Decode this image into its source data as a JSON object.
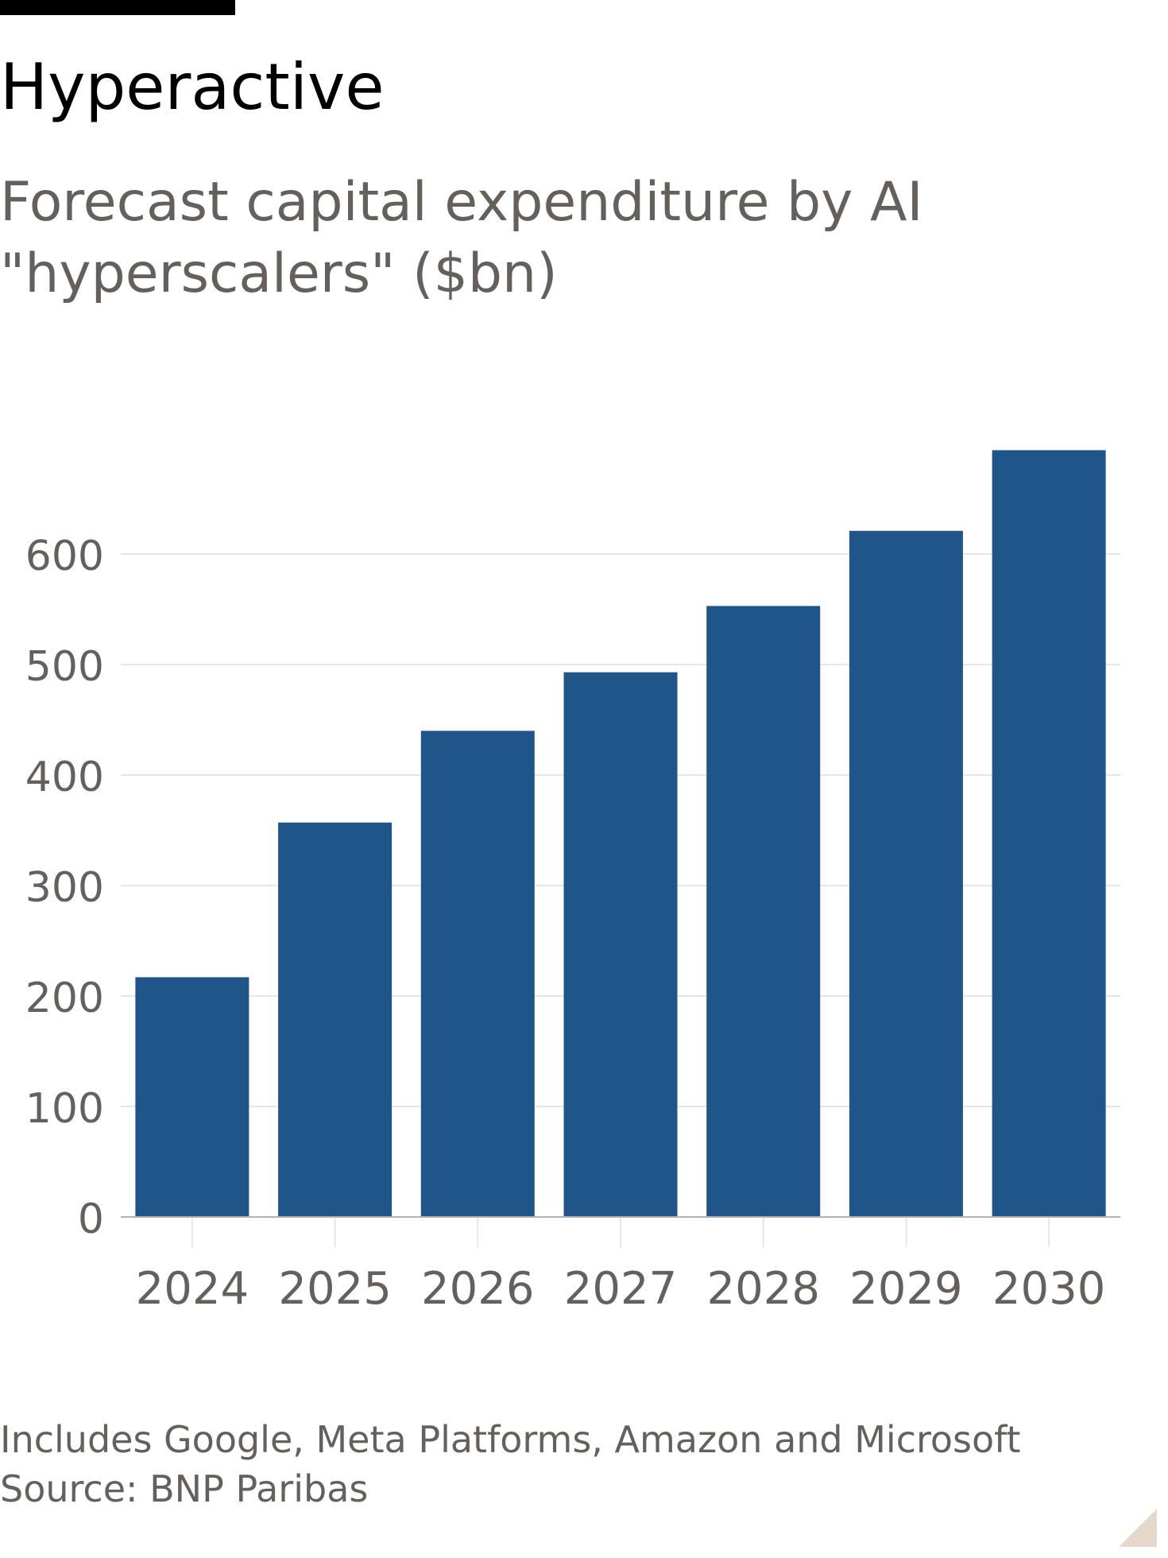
{
  "header": {
    "title": "Hyperactive",
    "subtitle": "Forecast capital expenditure by AI \"hyperscalers\" ($bn)"
  },
  "chart_data": {
    "type": "bar",
    "title": "Hyperactive",
    "subtitle": "Forecast capital expenditure by AI \"hyperscalers\" ($bn)",
    "categories": [
      "2024",
      "2025",
      "2026",
      "2027",
      "2028",
      "2029",
      "2030"
    ],
    "values": [
      217,
      357,
      440,
      493,
      553,
      621,
      694
    ],
    "yticks": [
      0,
      100,
      200,
      300,
      400,
      500,
      600
    ],
    "ylim": [
      0,
      694
    ],
    "xlabel": "",
    "ylabel": "",
    "grid": true,
    "legend": "none",
    "colors": {
      "bar": "#20558a",
      "grid": "#e6e6e6",
      "axis": "#b3b3b3",
      "text": "#66605c"
    }
  },
  "footer": {
    "note": "Includes Google, Meta Platforms, Amazon and Microsoft",
    "source": "Source: BNP Paribas"
  }
}
